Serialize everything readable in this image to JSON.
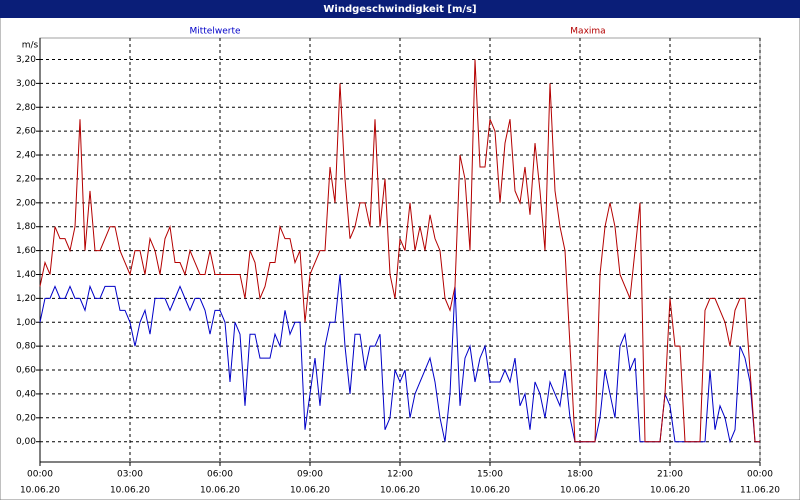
{
  "chart_data": {
    "type": "line",
    "title": "Windgeschwindigkeit [m/s]",
    "y_label": "m/s",
    "x": [
      "10.06.20 00:00",
      "10.06.20 00:10",
      "10.06.20 00:20",
      "10.06.20 00:30",
      "10.06.20 00:40",
      "10.06.20 00:50",
      "10.06.20 01:00",
      "10.06.20 01:10",
      "10.06.20 01:20",
      "10.06.20 01:30",
      "10.06.20 01:40",
      "10.06.20 01:50",
      "10.06.20 02:00",
      "10.06.20 02:10",
      "10.06.20 02:20",
      "10.06.20 02:30",
      "10.06.20 02:40",
      "10.06.20 02:50",
      "10.06.20 03:00",
      "10.06.20 03:10",
      "10.06.20 03:20",
      "10.06.20 03:30",
      "10.06.20 03:40",
      "10.06.20 03:50",
      "10.06.20 04:00",
      "10.06.20 04:10",
      "10.06.20 04:20",
      "10.06.20 04:30",
      "10.06.20 04:40",
      "10.06.20 04:50",
      "10.06.20 05:00",
      "10.06.20 05:10",
      "10.06.20 05:20",
      "10.06.20 05:30",
      "10.06.20 05:40",
      "10.06.20 05:50",
      "10.06.20 06:00",
      "10.06.20 06:10",
      "10.06.20 06:20",
      "10.06.20 06:30",
      "10.06.20 06:40",
      "10.06.20 06:50",
      "10.06.20 07:00",
      "10.06.20 07:10",
      "10.06.20 07:20",
      "10.06.20 07:30",
      "10.06.20 07:40",
      "10.06.20 07:50",
      "10.06.20 08:00",
      "10.06.20 08:10",
      "10.06.20 08:20",
      "10.06.20 08:30",
      "10.06.20 08:40",
      "10.06.20 08:50",
      "10.06.20 09:00",
      "10.06.20 09:10",
      "10.06.20 09:20",
      "10.06.20 09:30",
      "10.06.20 09:40",
      "10.06.20 09:50",
      "10.06.20 10:00",
      "10.06.20 10:10",
      "10.06.20 10:20",
      "10.06.20 10:30",
      "10.06.20 10:40",
      "10.06.20 10:50",
      "10.06.20 11:00",
      "10.06.20 11:10",
      "10.06.20 11:20",
      "10.06.20 11:30",
      "10.06.20 11:40",
      "10.06.20 11:50",
      "10.06.20 12:00",
      "10.06.20 12:10",
      "10.06.20 12:20",
      "10.06.20 12:30",
      "10.06.20 12:40",
      "10.06.20 12:50",
      "10.06.20 13:00",
      "10.06.20 13:10",
      "10.06.20 13:20",
      "10.06.20 13:30",
      "10.06.20 13:40",
      "10.06.20 13:50",
      "10.06.20 14:00",
      "10.06.20 14:10",
      "10.06.20 14:20",
      "10.06.20 14:30",
      "10.06.20 14:40",
      "10.06.20 14:50",
      "10.06.20 15:00",
      "10.06.20 15:10",
      "10.06.20 15:20",
      "10.06.20 15:30",
      "10.06.20 15:40",
      "10.06.20 15:50",
      "10.06.20 16:00",
      "10.06.20 16:10",
      "10.06.20 16:20",
      "10.06.20 16:30",
      "10.06.20 16:40",
      "10.06.20 16:50",
      "10.06.20 17:00",
      "10.06.20 17:10",
      "10.06.20 17:20",
      "10.06.20 17:30",
      "10.06.20 17:40",
      "10.06.20 17:50",
      "10.06.20 18:00",
      "10.06.20 18:10",
      "10.06.20 18:20",
      "10.06.20 18:30",
      "10.06.20 18:40",
      "10.06.20 18:50",
      "10.06.20 19:00",
      "10.06.20 19:10",
      "10.06.20 19:20",
      "10.06.20 19:30",
      "10.06.20 19:40",
      "10.06.20 19:50",
      "10.06.20 20:00",
      "10.06.20 20:10",
      "10.06.20 20:20",
      "10.06.20 20:30",
      "10.06.20 20:40",
      "10.06.20 20:50",
      "10.06.20 21:00",
      "10.06.20 21:10",
      "10.06.20 21:20",
      "10.06.20 21:30",
      "10.06.20 21:40",
      "10.06.20 21:50",
      "10.06.20 22:00",
      "10.06.20 22:10",
      "10.06.20 22:20",
      "10.06.20 22:30",
      "10.06.20 22:40",
      "10.06.20 22:50",
      "10.06.20 23:00",
      "10.06.20 23:10",
      "10.06.20 23:20",
      "10.06.20 23:30",
      "10.06.20 23:40",
      "10.06.20 23:50",
      "11.06.20 00:00"
    ],
    "series": [
      {
        "name": "Mittelwerte",
        "color": "#0000c8",
        "values": [
          1.0,
          1.2,
          1.2,
          1.3,
          1.2,
          1.2,
          1.3,
          1.2,
          1.2,
          1.1,
          1.3,
          1.2,
          1.2,
          1.3,
          1.3,
          1.3,
          1.1,
          1.1,
          1.0,
          0.8,
          1.0,
          1.1,
          0.9,
          1.2,
          1.2,
          1.2,
          1.1,
          1.2,
          1.3,
          1.2,
          1.1,
          1.2,
          1.2,
          1.1,
          0.9,
          1.1,
          1.1,
          1.0,
          0.5,
          1.0,
          0.9,
          0.3,
          0.9,
          0.9,
          0.7,
          0.7,
          0.7,
          0.9,
          0.8,
          1.1,
          0.9,
          1.0,
          1.0,
          0.1,
          0.4,
          0.7,
          0.3,
          0.8,
          1.0,
          1.0,
          1.4,
          0.8,
          0.4,
          0.9,
          0.9,
          0.6,
          0.8,
          0.8,
          0.9,
          0.1,
          0.2,
          0.6,
          0.5,
          0.6,
          0.2,
          0.4,
          0.5,
          0.6,
          0.7,
          0.5,
          0.2,
          0.0,
          0.4,
          1.3,
          0.3,
          0.7,
          0.8,
          0.5,
          0.7,
          0.8,
          0.5,
          0.5,
          0.5,
          0.6,
          0.5,
          0.7,
          0.3,
          0.4,
          0.1,
          0.5,
          0.4,
          0.2,
          0.5,
          0.4,
          0.3,
          0.6,
          0.2,
          0.0,
          0.0,
          0.0,
          0.0,
          0.0,
          0.2,
          0.6,
          0.4,
          0.2,
          0.8,
          0.9,
          0.6,
          0.7,
          0.0,
          0.0,
          0.0,
          0.0,
          0.0,
          0.4,
          0.3,
          0.0,
          0.0,
          0.0,
          0.0,
          0.0,
          0.0,
          0.0,
          0.6,
          0.1,
          0.3,
          0.2,
          0.0,
          0.1,
          0.8,
          0.7,
          0.5,
          0.0,
          0.0
        ]
      },
      {
        "name": "Maxima",
        "color": "#b40000",
        "values": [
          1.3,
          1.5,
          1.4,
          1.8,
          1.7,
          1.7,
          1.6,
          1.8,
          2.7,
          1.6,
          2.1,
          1.6,
          1.6,
          1.7,
          1.8,
          1.8,
          1.6,
          1.5,
          1.4,
          1.6,
          1.6,
          1.4,
          1.7,
          1.6,
          1.4,
          1.7,
          1.8,
          1.5,
          1.5,
          1.4,
          1.6,
          1.5,
          1.4,
          1.4,
          1.6,
          1.4,
          1.4,
          1.4,
          1.4,
          1.4,
          1.4,
          1.2,
          1.6,
          1.5,
          1.2,
          1.3,
          1.5,
          1.5,
          1.8,
          1.7,
          1.7,
          1.5,
          1.6,
          1.0,
          1.4,
          1.5,
          1.6,
          1.6,
          2.3,
          2.0,
          3.0,
          2.2,
          1.7,
          1.8,
          2.0,
          2.0,
          1.8,
          2.7,
          1.8,
          2.2,
          1.4,
          1.2,
          1.7,
          1.6,
          2.0,
          1.6,
          1.8,
          1.6,
          1.9,
          1.7,
          1.6,
          1.2,
          1.1,
          1.3,
          2.4,
          2.2,
          1.6,
          3.2,
          2.3,
          2.3,
          2.7,
          2.6,
          2.0,
          2.5,
          2.7,
          2.1,
          2.0,
          2.3,
          1.9,
          2.5,
          2.1,
          1.6,
          3.0,
          2.1,
          1.8,
          1.6,
          0.8,
          0.0,
          0.0,
          0.0,
          0.0,
          0.0,
          1.4,
          1.8,
          2.0,
          1.8,
          1.4,
          1.3,
          1.2,
          1.6,
          2.0,
          0.0,
          0.0,
          0.0,
          0.0,
          0.4,
          1.2,
          0.8,
          0.8,
          0.0,
          0.0,
          0.0,
          0.0,
          1.1,
          1.2,
          1.2,
          1.1,
          1.0,
          0.8,
          1.1,
          1.2,
          1.2,
          0.6,
          0.0,
          0.0
        ]
      }
    ],
    "xlim": [
      "10.06.20 00:00",
      "11.06.20 00:00"
    ],
    "xticks": [
      {
        "value": "10.06.20 00:00",
        "label": [
          "00:00",
          "10.06.20"
        ]
      },
      {
        "value": "10.06.20 03:00",
        "label": [
          "03:00",
          "10.06.20"
        ]
      },
      {
        "value": "10.06.20 06:00",
        "label": [
          "06:00",
          "10.06.20"
        ]
      },
      {
        "value": "10.06.20 09:00",
        "label": [
          "09:00",
          "10.06.20"
        ]
      },
      {
        "value": "10.06.20 12:00",
        "label": [
          "12:00",
          "10.06.20"
        ]
      },
      {
        "value": "10.06.20 15:00",
        "label": [
          "15:00",
          "10.06.20"
        ]
      },
      {
        "value": "10.06.20 18:00",
        "label": [
          "18:00",
          "10.06.20"
        ]
      },
      {
        "value": "10.06.20 21:00",
        "label": [
          "21:00",
          "10.06.20"
        ]
      },
      {
        "value": "11.06.20 00:00",
        "label": [
          "00:00",
          "11.06.20"
        ]
      }
    ],
    "ylim": [
      -0.17,
      3.38
    ],
    "yticks": [
      {
        "value": 0,
        "label": "0,00"
      },
      {
        "value": 0.2,
        "label": "0,20"
      },
      {
        "value": 0.4,
        "label": "0,40"
      },
      {
        "value": 0.6,
        "label": "0,60"
      },
      {
        "value": 0.8,
        "label": "0,80"
      },
      {
        "value": 1,
        "label": "1,00"
      },
      {
        "value": 1.2,
        "label": "1,20"
      },
      {
        "value": 1.4,
        "label": "1,40"
      },
      {
        "value": 1.6,
        "label": "1,60"
      },
      {
        "value": 1.8,
        "label": "1,80"
      },
      {
        "value": 2,
        "label": "2,00"
      },
      {
        "value": 2.2,
        "label": "2,20"
      },
      {
        "value": 2.4,
        "label": "2,40"
      },
      {
        "value": 2.6,
        "label": "2,60"
      },
      {
        "value": 2.8,
        "label": "2,80"
      },
      {
        "value": 3,
        "label": "3,00"
      },
      {
        "value": 3.2,
        "label": "3,20"
      }
    ],
    "grid": true
  }
}
